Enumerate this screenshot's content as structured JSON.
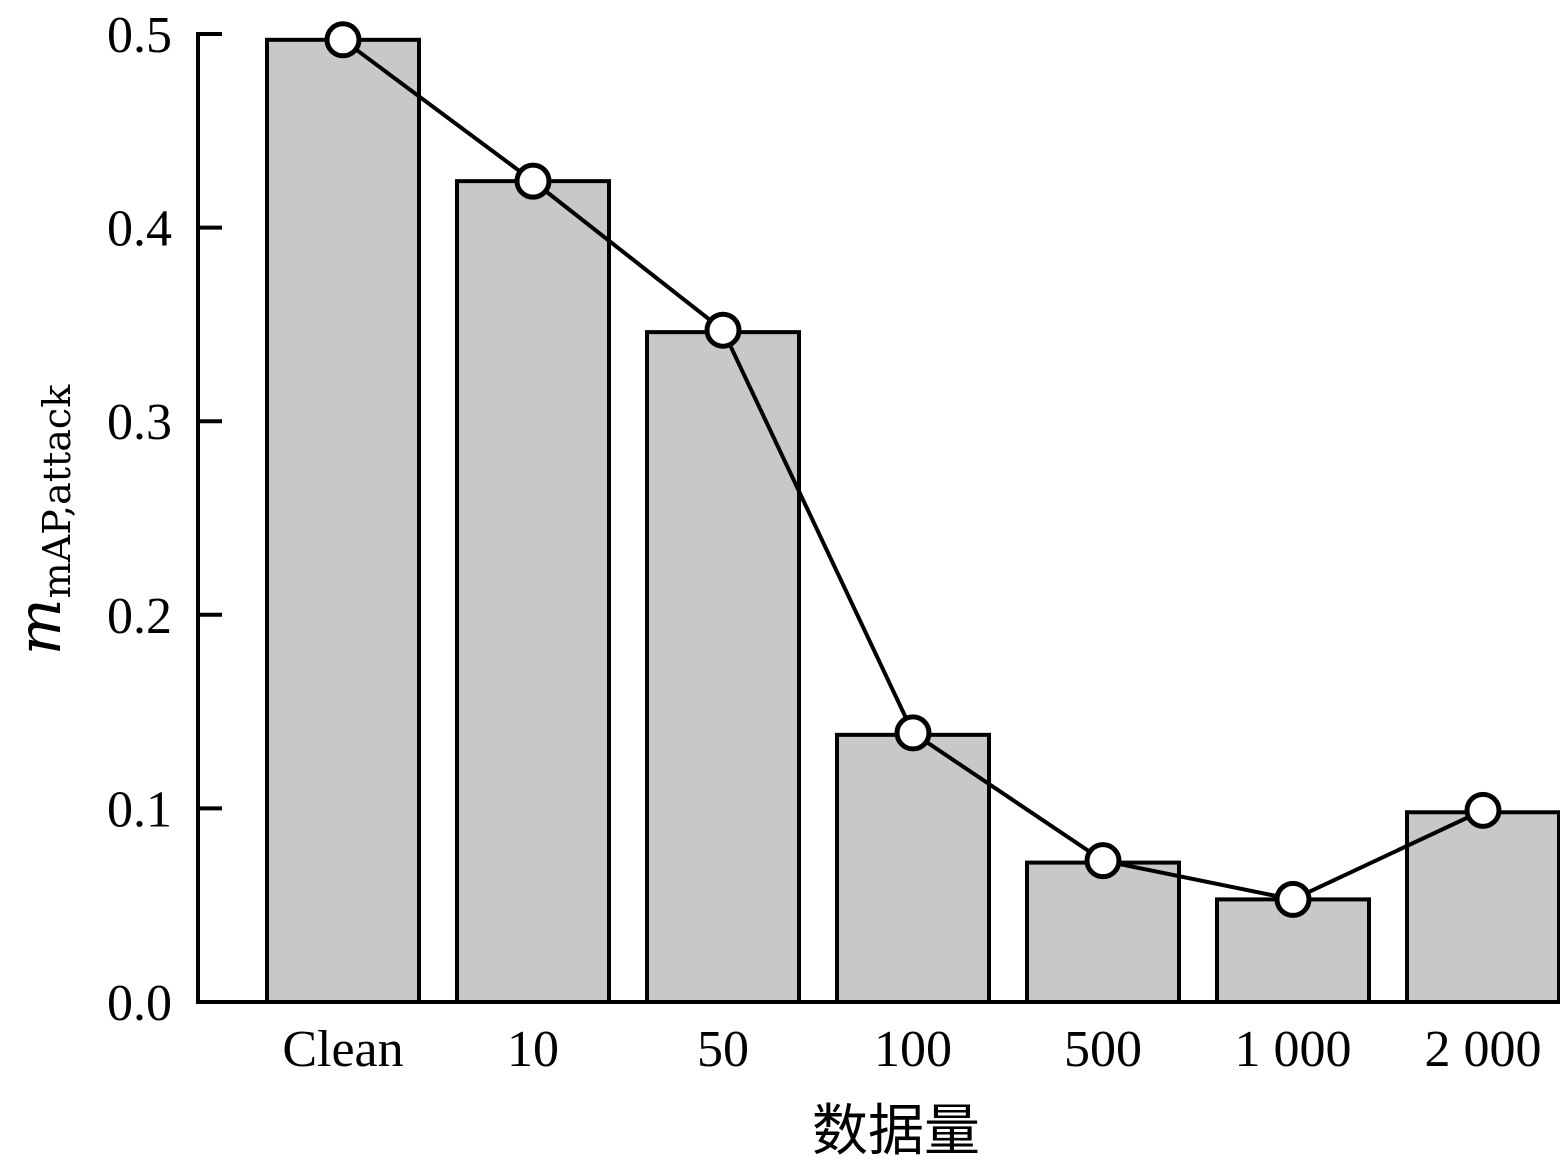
{
  "chart_data": {
    "type": "bar",
    "categories": [
      "Clean",
      "10",
      "50",
      "100",
      "500",
      "1 000",
      "2 000"
    ],
    "series": [
      {
        "kind": "bar",
        "values": [
          0.497,
          0.424,
          0.346,
          0.138,
          0.072,
          0.053,
          0.098
        ],
        "fill": "#c8c8c8"
      },
      {
        "kind": "line",
        "marker": "open-circle",
        "values": [
          0.497,
          0.424,
          0.347,
          0.139,
          0.073,
          0.053,
          0.099
        ],
        "color": "#000000"
      }
    ],
    "xlabel": "数据量",
    "ylabel": {
      "main": "m",
      "subscript": "mAP,attack"
    },
    "ylim": [
      0,
      0.5
    ],
    "yticks": [
      "0.0",
      "0.1",
      "0.2",
      "0.3",
      "0.4",
      "0.5"
    ],
    "grid": false,
    "legend": "none"
  }
}
